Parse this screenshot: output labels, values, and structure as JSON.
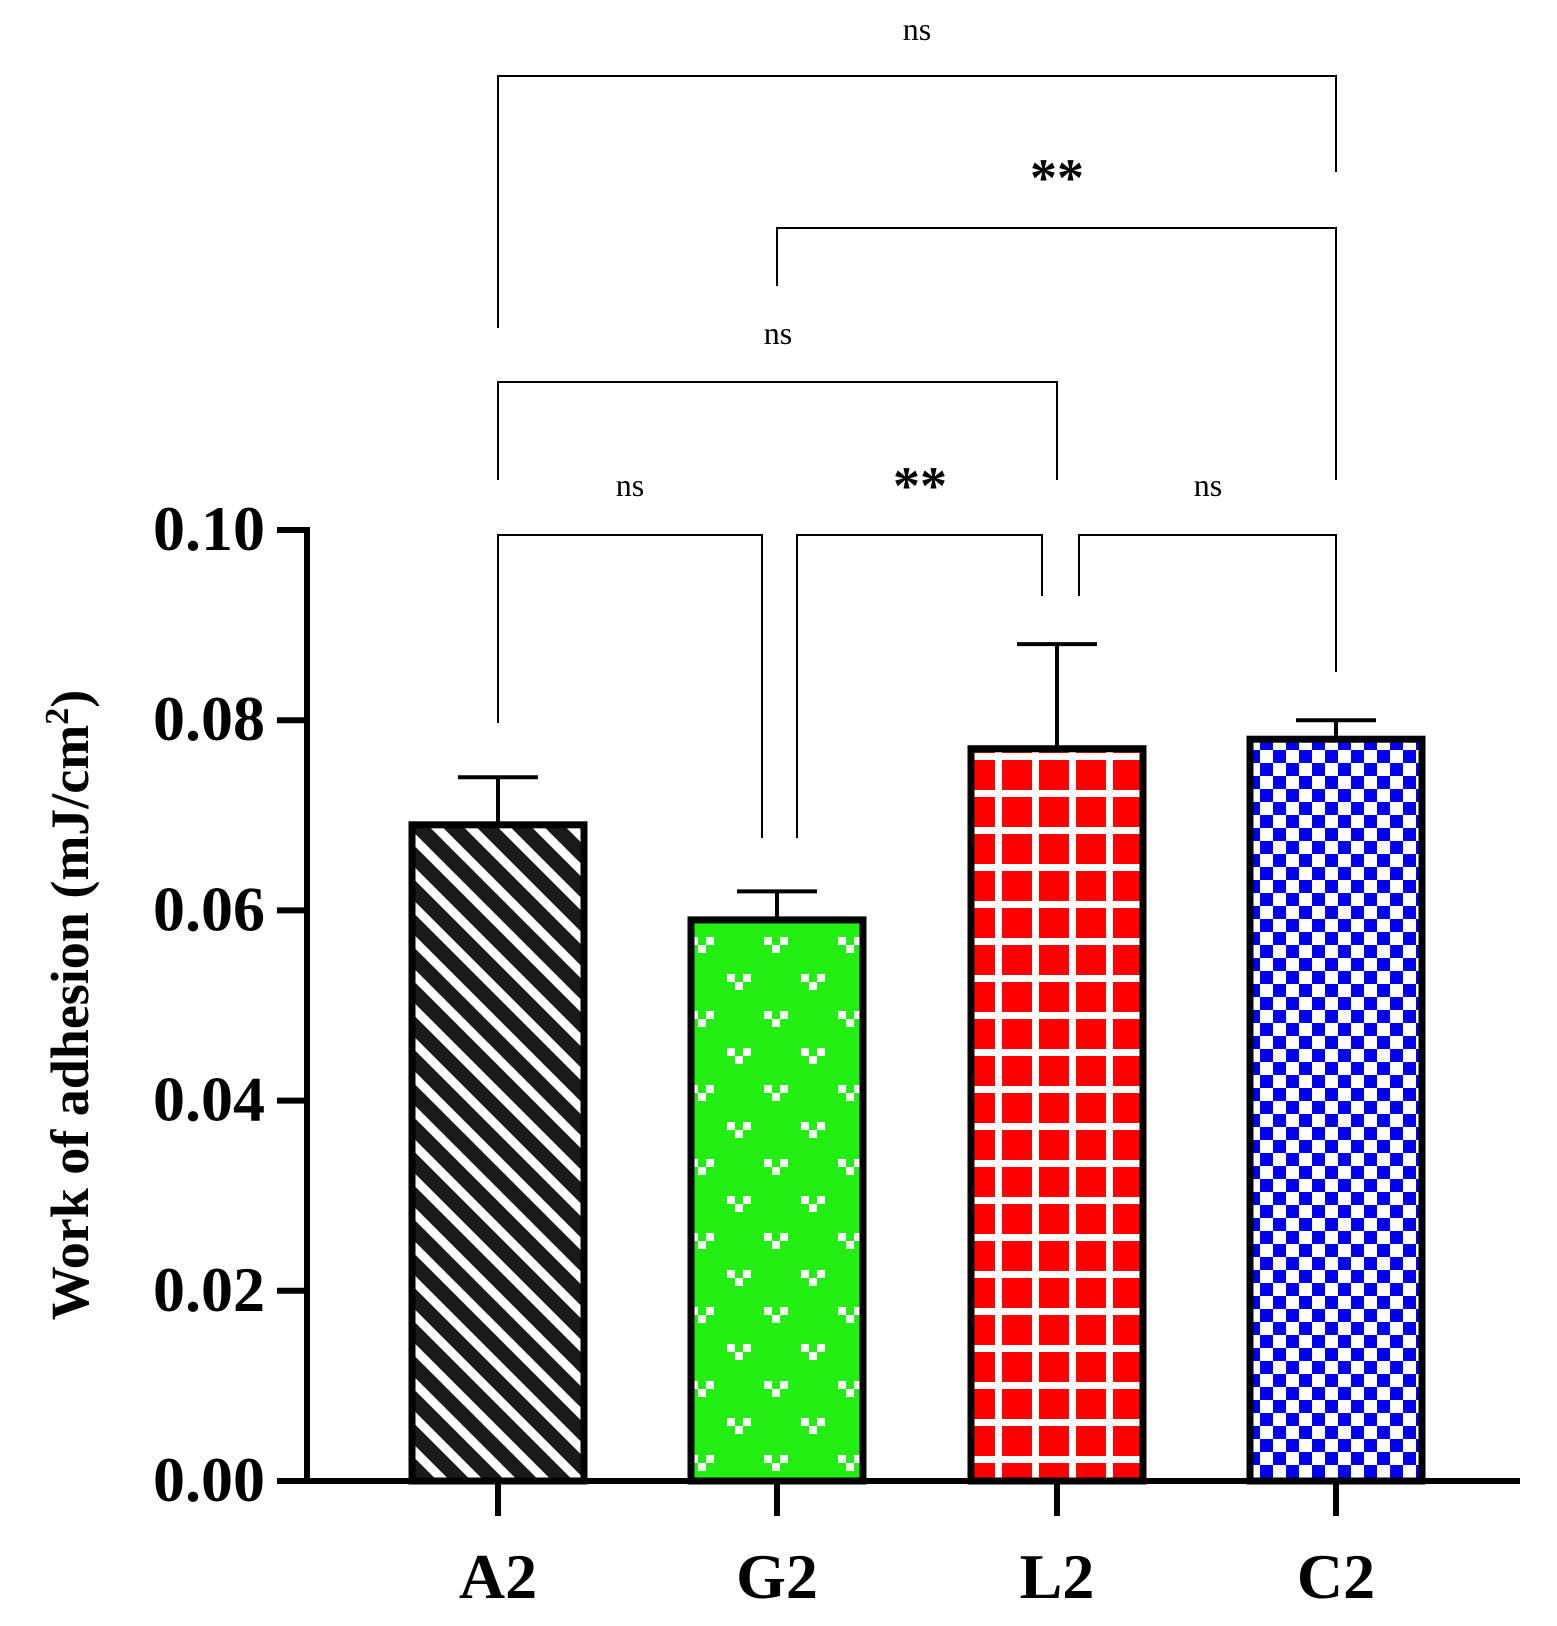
{
  "chart_data": {
    "type": "bar",
    "title": "",
    "xlabel": "",
    "ylabel": "Work of adhesion (mJ/cm",
    "ylabel_superscript": "2",
    "ylabel_close": ")",
    "ylim": [
      0,
      0.1
    ],
    "yticks": [
      "0.00",
      "0.02",
      "0.04",
      "0.06",
      "0.08",
      "0.10"
    ],
    "categories": [
      "A2",
      "G2",
      "L2",
      "C2"
    ],
    "values": [
      0.069,
      0.059,
      0.077,
      0.078
    ],
    "errors": [
      0.005,
      0.003,
      0.011,
      0.002
    ],
    "patterns": [
      "diagonal-stripes",
      "green-dots",
      "red-grid",
      "blue-checker"
    ],
    "colors": [
      "#1a1a1a",
      "#22ee11",
      "#ff0000",
      "#0000ee"
    ],
    "comparisons": [
      {
        "from": "A2",
        "to": "G2",
        "label": "ns"
      },
      {
        "from": "G2",
        "to": "L2",
        "label": "**"
      },
      {
        "from": "L2",
        "to": "C2",
        "label": "ns"
      },
      {
        "from": "A2",
        "to": "L2",
        "label": "ns"
      },
      {
        "from": "G2",
        "to": "C2",
        "label": "**"
      },
      {
        "from": "A2",
        "to": "C2",
        "label": "ns"
      }
    ]
  }
}
